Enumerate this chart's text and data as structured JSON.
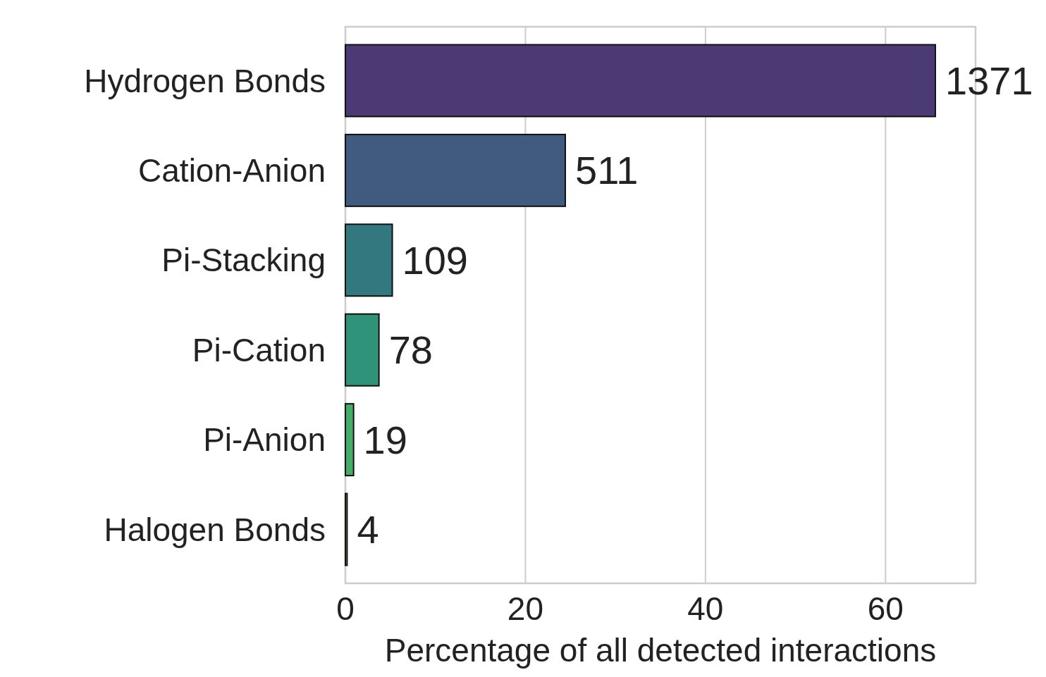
{
  "chart_data": {
    "type": "bar",
    "orientation": "horizontal",
    "xlabel": "Percentage of all detected interactions",
    "categories": [
      "Hydrogen Bonds",
      "Cation-Anion",
      "Pi-Stacking",
      "Pi-Cation",
      "Pi-Anion",
      "Halogen Bonds"
    ],
    "values": [
      65.54,
      24.43,
      5.21,
      3.73,
      0.91,
      0.19
    ],
    "colors": [
      "#4b3a73",
      "#415b80",
      "#33787f",
      "#2f9379",
      "#45ad6a",
      "#8cc95c"
    ],
    "annotations": [
      {
        "text": "1371",
        "x": 65.54,
        "y": "Hydrogen Bonds"
      },
      {
        "text": "511",
        "x": 24.43,
        "y": "Cation-Anion"
      },
      {
        "text": "109",
        "x": 5.21,
        "y": "Pi-Stacking"
      },
      {
        "text": "78",
        "x": 3.73,
        "y": "Pi-Cation"
      },
      {
        "text": "19",
        "x": 0.91,
        "y": "Pi-Anion"
      },
      {
        "text": "4",
        "x": 0.19,
        "y": "Halogen Bonds"
      }
    ],
    "xlim": [
      0,
      70
    ],
    "xticks": [
      0,
      20,
      40,
      60
    ],
    "grid": "x"
  }
}
